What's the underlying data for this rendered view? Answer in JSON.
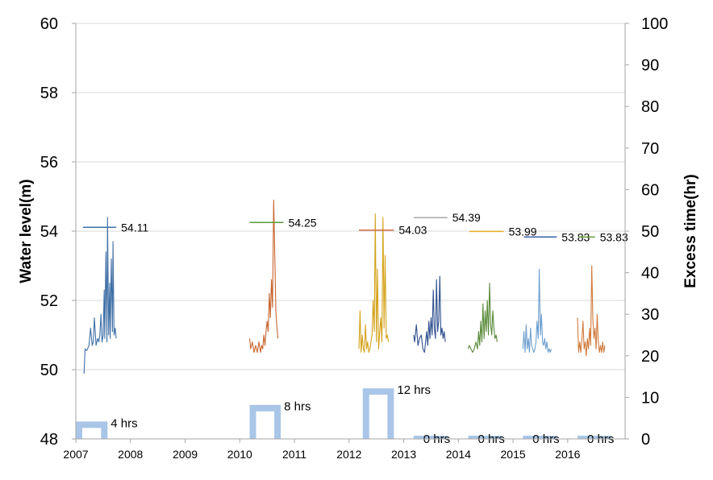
{
  "chart_data": {
    "type": "line",
    "xlabel": "",
    "ylabel": "Water level(m)",
    "y2label": "Excess time(hr)",
    "ylim": [
      48,
      60
    ],
    "y2lim": [
      0,
      100
    ],
    "xlim": [
      2007,
      2017.05
    ],
    "yticks": [
      48,
      50,
      52,
      54,
      56,
      58,
      60
    ],
    "y2ticks": [
      0,
      10,
      20,
      30,
      40,
      50,
      60,
      70,
      80,
      90,
      100
    ],
    "xticks": [
      {
        "v": 2007,
        "label": "2007"
      },
      {
        "v": 2008,
        "label": "2008"
      },
      {
        "v": 2009,
        "label": "2009"
      },
      {
        "v": 2010,
        "label": "2010"
      },
      {
        "v": 2011,
        "label": "2011"
      },
      {
        "v": 2012,
        "label": "2012"
      },
      {
        "v": 2013,
        "label": "2013"
      },
      {
        "v": 2014,
        "label": "2014"
      },
      {
        "v": 2015,
        "label": "2015"
      },
      {
        "v": 2016,
        "label": "2016"
      }
    ],
    "grid": "horizontal",
    "series": [
      {
        "color": "#3f6fa6",
        "x": [
          2007.14,
          2007.15,
          2007.17,
          2007.2,
          2007.24,
          2007.27,
          2007.3,
          2007.32,
          2007.34,
          2007.37,
          2007.4,
          2007.42,
          2007.44,
          2007.46,
          2007.48,
          2007.5,
          2007.52,
          2007.53,
          2007.55,
          2007.57,
          2007.58,
          2007.6,
          2007.62,
          2007.63,
          2007.65,
          2007.67,
          2007.68,
          2007.7,
          2007.72,
          2007.74
        ],
        "values": [
          49.9,
          49.9,
          50.6,
          50.55,
          50.7,
          51.2,
          50.7,
          50.8,
          51.5,
          50.7,
          50.9,
          50.8,
          51.0,
          51.6,
          50.8,
          51.0,
          52.3,
          50.9,
          53.4,
          50.8,
          54.4,
          51.0,
          52.5,
          50.9,
          53.2,
          51.1,
          53.7,
          51.0,
          51.2,
          50.9
        ]
      },
      {
        "color": "#c8662f",
        "x": [
          2010.18,
          2010.2,
          2010.23,
          2010.26,
          2010.29,
          2010.32,
          2010.35,
          2010.38,
          2010.4,
          2010.42,
          2010.44,
          2010.46,
          2010.48,
          2010.5,
          2010.52,
          2010.54,
          2010.56,
          2010.58,
          2010.6,
          2010.62,
          2010.64,
          2010.66,
          2010.68,
          2010.7
        ],
        "values": [
          50.9,
          50.6,
          50.8,
          50.5,
          50.7,
          50.5,
          50.8,
          50.5,
          50.7,
          50.6,
          51.0,
          50.7,
          51.1,
          51.4,
          51.1,
          52.2,
          51.5,
          52.6,
          51.8,
          54.9,
          53.3,
          51.7,
          51.2,
          50.9
        ]
      },
      {
        "color": "#d4a21a",
        "x": [
          2012.18,
          2012.2,
          2012.22,
          2012.24,
          2012.26,
          2012.28,
          2012.3,
          2012.32,
          2012.34,
          2012.36,
          2012.38,
          2012.4,
          2012.42,
          2012.44,
          2012.46,
          2012.48,
          2012.5,
          2012.52,
          2012.54,
          2012.56,
          2012.58,
          2012.6,
          2012.62,
          2012.64,
          2012.66,
          2012.68,
          2012.7,
          2012.72
        ],
        "values": [
          50.6,
          51.7,
          50.5,
          51.0,
          50.6,
          50.5,
          51.3,
          50.6,
          50.8,
          50.5,
          50.6,
          50.8,
          51.0,
          52.0,
          51.1,
          54.5,
          50.8,
          52.9,
          50.6,
          51.1,
          51.5,
          50.8,
          54.4,
          51.2,
          53.3,
          50.9,
          51.0,
          50.8
        ]
      },
      {
        "color": "#2f4f8f",
        "x": [
          2013.18,
          2013.2,
          2013.23,
          2013.26,
          2013.29,
          2013.32,
          2013.35,
          2013.38,
          2013.4,
          2013.42,
          2013.44,
          2013.46,
          2013.48,
          2013.5,
          2013.52,
          2013.54,
          2013.56,
          2013.58,
          2013.6,
          2013.62,
          2013.64,
          2013.66,
          2013.68,
          2013.7,
          2013.72,
          2013.74,
          2013.76
        ],
        "values": [
          51.0,
          50.8,
          51.3,
          50.7,
          50.9,
          51.0,
          50.6,
          50.5,
          50.8,
          51.1,
          50.7,
          51.4,
          50.9,
          51.5,
          51.0,
          52.3,
          51.2,
          50.9,
          52.6,
          51.1,
          51.4,
          52.7,
          51.0,
          51.2,
          50.9,
          51.1,
          50.8
        ]
      },
      {
        "color": "#5a8a3a",
        "x": [
          2014.18,
          2014.2,
          2014.23,
          2014.26,
          2014.29,
          2014.32,
          2014.35,
          2014.37,
          2014.39,
          2014.41,
          2014.43,
          2014.45,
          2014.47,
          2014.49,
          2014.51,
          2014.53,
          2014.55,
          2014.57,
          2014.59,
          2014.61,
          2014.63,
          2014.65,
          2014.67,
          2014.69,
          2014.71
        ],
        "values": [
          50.6,
          50.7,
          50.6,
          50.5,
          50.6,
          50.8,
          50.6,
          51.1,
          50.7,
          51.4,
          50.8,
          51.9,
          50.9,
          51.7,
          51.1,
          52.0,
          51.0,
          52.5,
          51.3,
          51.0,
          51.7,
          51.2,
          50.9,
          51.0,
          50.8
        ]
      },
      {
        "color": "#6e9fcf",
        "x": [
          2015.18,
          2015.2,
          2015.22,
          2015.24,
          2015.26,
          2015.28,
          2015.3,
          2015.32,
          2015.34,
          2015.36,
          2015.38,
          2015.4,
          2015.42,
          2015.44,
          2015.46,
          2015.48,
          2015.5,
          2015.52,
          2015.54,
          2015.56,
          2015.58,
          2015.6,
          2015.62,
          2015.64,
          2015.66,
          2015.68,
          2015.7
        ],
        "values": [
          50.6,
          51.1,
          50.5,
          51.3,
          50.6,
          50.9,
          50.5,
          51.2,
          50.7,
          50.6,
          50.5,
          50.6,
          50.8,
          51.4,
          50.9,
          52.9,
          51.0,
          51.6,
          50.8,
          50.7,
          50.9,
          50.6,
          50.8,
          50.5,
          50.6,
          50.5,
          50.6
        ]
      },
      {
        "color": "#d07a3c",
        "x": [
          2016.18,
          2016.2,
          2016.22,
          2016.24,
          2016.26,
          2016.28,
          2016.3,
          2016.32,
          2016.34,
          2016.36,
          2016.38,
          2016.4,
          2016.42,
          2016.44,
          2016.46,
          2016.48,
          2016.5,
          2016.52,
          2016.54,
          2016.56,
          2016.58,
          2016.6,
          2016.62,
          2016.64,
          2016.66,
          2016.68
        ],
        "values": [
          51.5,
          50.5,
          50.8,
          50.5,
          50.9,
          51.4,
          50.6,
          50.8,
          50.4,
          50.9,
          50.6,
          51.2,
          50.7,
          53.0,
          51.5,
          50.9,
          51.2,
          50.6,
          51.6,
          50.8,
          50.5,
          50.7,
          50.5,
          50.8,
          50.5,
          50.7
        ]
      }
    ],
    "peak_lines": [
      {
        "value": 54.11,
        "label": "54.11",
        "color": "#3f6fa6",
        "x_start": 2007.13,
        "x_end": 2007.74
      },
      {
        "value": 54.25,
        "label": "54.25",
        "color": "#5a9a3a",
        "x_start": 2010.18,
        "x_end": 2010.8
      },
      {
        "value": 54.03,
        "label": "54.03",
        "color": "#d4704a",
        "x_start": 2012.18,
        "x_end": 2012.82
      },
      {
        "value": 54.39,
        "label": "54.39",
        "color": "#a8a8a8",
        "x_start": 2013.18,
        "x_end": 2013.8
      },
      {
        "value": 53.99,
        "label": "53.99",
        "color": "#e8b020",
        "x_start": 2014.2,
        "x_end": 2014.83
      },
      {
        "value": 53.83,
        "label": "53.83",
        "color": "#3a5fa8",
        "x_start": 2015.2,
        "x_end": 2015.8
      },
      {
        "value": 53.83,
        "label": "53.83",
        "color": "#6aa040",
        "x_start": 2016.2,
        "x_end": 2016.5
      }
    ],
    "excess_time": [
      {
        "label": "4 hrs",
        "hours": 4,
        "x_start": 2007.0,
        "x_end": 2007.58
      },
      {
        "label": "8 hrs",
        "hours": 8,
        "x_start": 2010.18,
        "x_end": 2010.75
      },
      {
        "label": "12 hrs",
        "hours": 12,
        "x_start": 2012.25,
        "x_end": 2012.82
      },
      {
        "label": "0 hrs",
        "hours": 0,
        "x_start": 2013.18,
        "x_end": 2013.8
      },
      {
        "label": "0 hrs",
        "hours": 0,
        "x_start": 2014.18,
        "x_end": 2014.8
      },
      {
        "label": "0 hrs",
        "hours": 0,
        "x_start": 2015.18,
        "x_end": 2015.8
      },
      {
        "label": "0 hrs",
        "hours": 0,
        "x_start": 2016.18,
        "x_end": 2016.8
      }
    ],
    "excess_color": "#a9c6e8"
  }
}
